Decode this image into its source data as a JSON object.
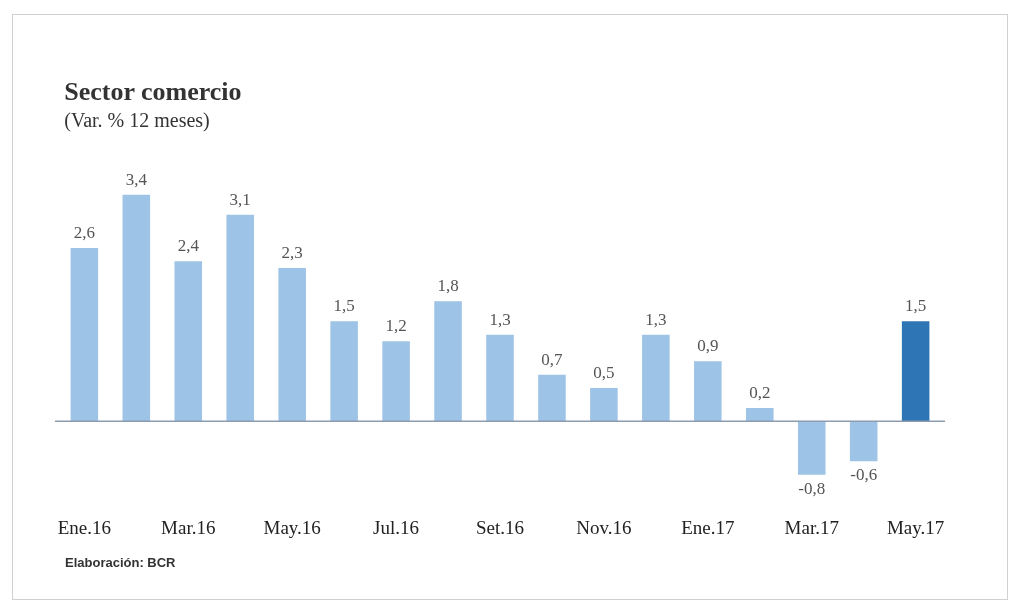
{
  "chart_data": {
    "type": "bar",
    "title": "Sector comercio",
    "subtitle": "(Var. % 12 meses)",
    "categories": [
      "Ene.16",
      null,
      "Mar.16",
      null,
      "May.16",
      null,
      "Jul.16",
      null,
      "Set.16",
      null,
      "Nov.16",
      null,
      "Ene.17",
      null,
      "Mar.17",
      null,
      "May.17"
    ],
    "values": [
      2.6,
      3.4,
      2.4,
      3.1,
      2.3,
      1.5,
      1.2,
      1.8,
      1.3,
      0.7,
      0.5,
      1.3,
      0.9,
      0.2,
      -0.8,
      -0.6,
      1.5
    ],
    "value_labels": [
      "2,6",
      "3,4",
      "2,4",
      "3,1",
      "2,3",
      "1,5",
      "1,2",
      "1,8",
      "1,3",
      "0,7",
      "0,5",
      "1,3",
      "0,9",
      "0,2",
      "-0,8",
      "-0,6",
      "1,5"
    ],
    "colors": [
      "#9dc3e6",
      "#9dc3e6",
      "#9dc3e6",
      "#9dc3e6",
      "#9dc3e6",
      "#9dc3e6",
      "#9dc3e6",
      "#9dc3e6",
      "#9dc3e6",
      "#9dc3e6",
      "#9dc3e6",
      "#9dc3e6",
      "#9dc3e6",
      "#9dc3e6",
      "#9dc3e6",
      "#9dc3e6",
      "#2e75b6"
    ],
    "annotations": [
      "Elaboración: BCR"
    ]
  }
}
